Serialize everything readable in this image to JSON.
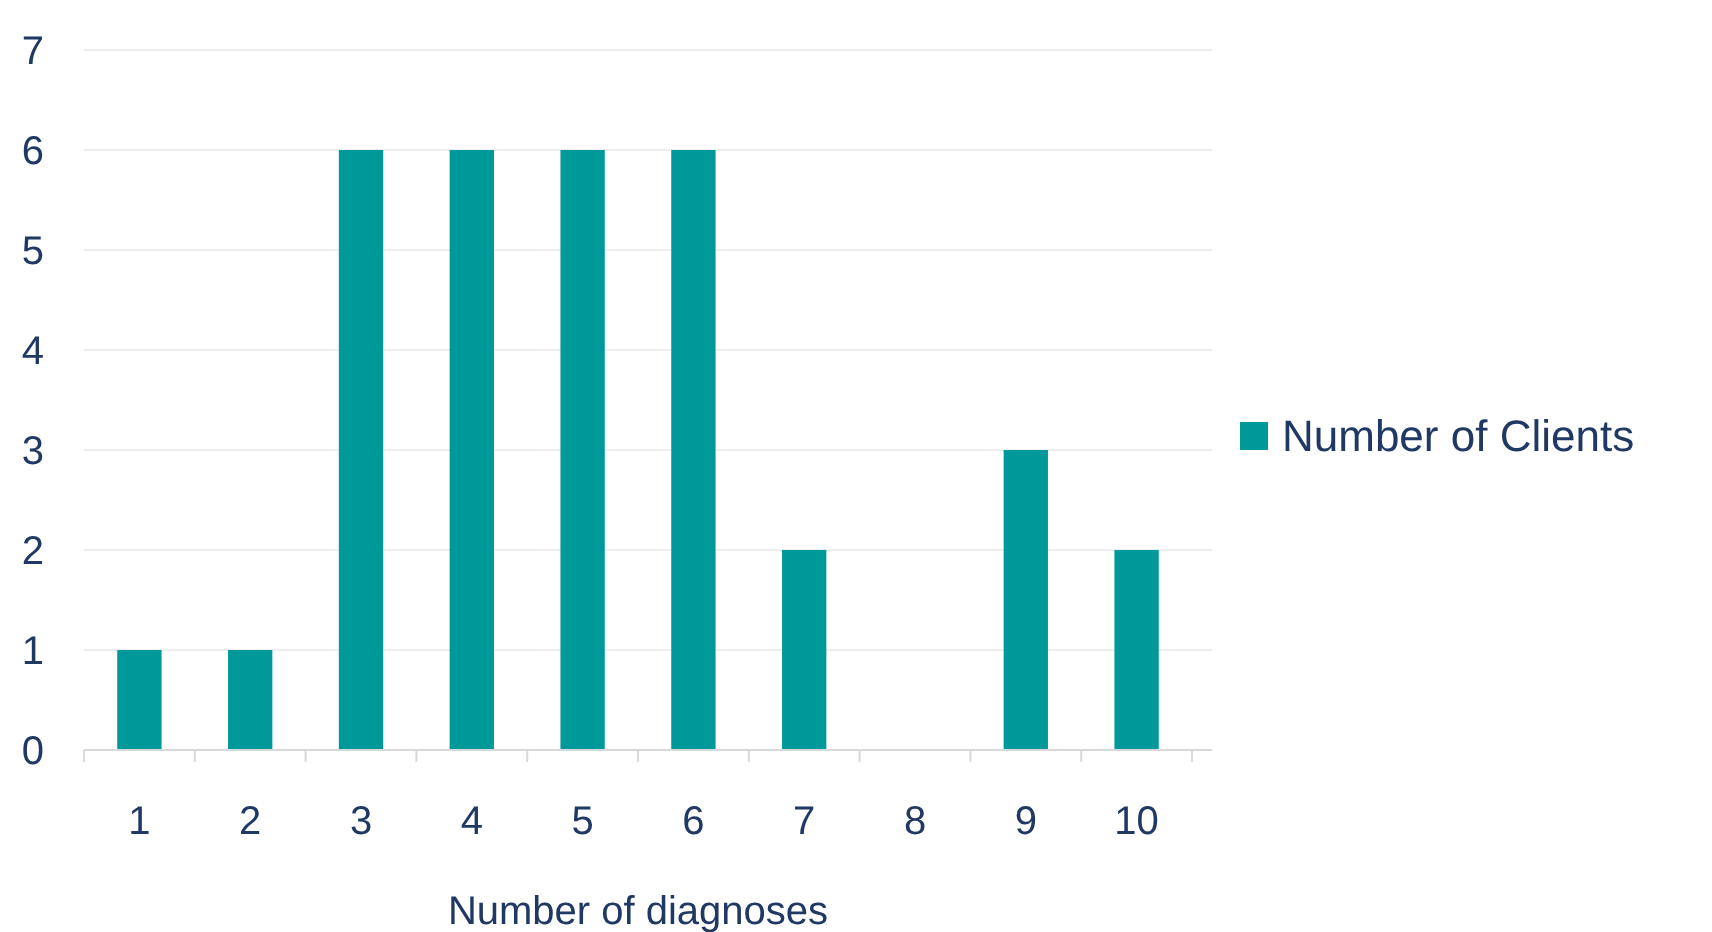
{
  "chart_data": {
    "type": "bar",
    "xlabel": "Number of diagnoses",
    "categories": [
      "1",
      "2",
      "3",
      "4",
      "5",
      "6",
      "7",
      "8",
      "9",
      "10"
    ],
    "series": [
      {
        "name": "Number of Clients",
        "color": "#009999",
        "values": [
          1,
          1,
          6,
          6,
          6,
          6,
          2,
          0,
          3,
          2
        ]
      }
    ],
    "ylim": [
      0,
      7
    ],
    "yticks": [
      0,
      1,
      2,
      3,
      4,
      5,
      6,
      7
    ],
    "grid": "y",
    "legend": "right"
  }
}
